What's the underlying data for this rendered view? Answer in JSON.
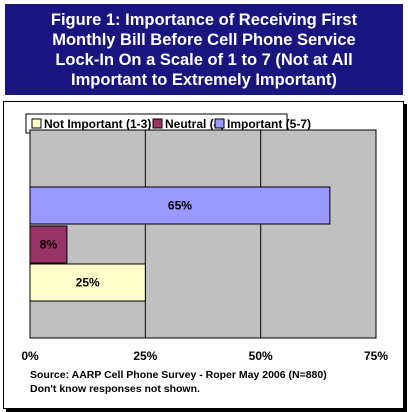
{
  "title": {
    "lines": [
      "Figure 1: Importance of Receiving First",
      "Monthly Bill Before Cell Phone Service",
      "Lock-In On a Scale of 1 to 7 (Not at All",
      "Important to Extremely Important)"
    ],
    "background": "#1a1480",
    "color": "#ffffff"
  },
  "chart_data": {
    "type": "bar",
    "orientation": "horizontal",
    "legend_position": "top",
    "series": [
      {
        "name": "Not Important (1-3)",
        "value": 25,
        "label": "25%",
        "color": "#ffffcc"
      },
      {
        "name": "Neutral (4)",
        "value": 8,
        "label": "8%",
        "color": "#993366"
      },
      {
        "name": "Important (5-7)",
        "value": 65,
        "label": "65%",
        "color": "#9999ff"
      }
    ],
    "xlim": [
      0,
      75
    ],
    "x_ticks": [
      "0%",
      "25%",
      "50%",
      "75%"
    ],
    "plot_background": "#c0c0c0",
    "grid": true
  },
  "source": {
    "line1": "Source: AARP Cell Phone Survey - Roper May 2006 (N=880)",
    "line2": "Don't know responses not shown."
  }
}
